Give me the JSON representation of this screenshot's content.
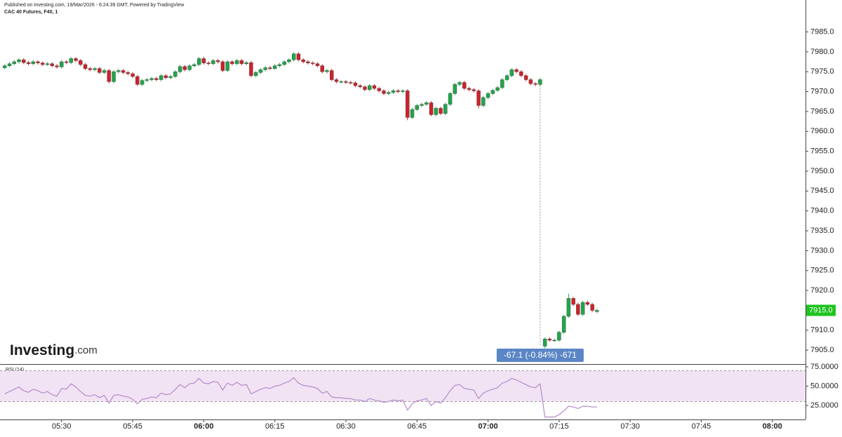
{
  "header": {
    "published": "Published on Investing.com, 19/Mar/2026 - 6:24:39 GMT, Powered by TradingView",
    "symbol": "CAC 40 Futures, F40, 1"
  },
  "watermark": [
    "Investing",
    ".com"
  ],
  "chart_data": [
    {
      "type": "candlestick",
      "up_color": "#1fa84a",
      "down_color": "#d0212b",
      "x": [
        "05:18",
        "05:19",
        "05:20",
        "05:21",
        "05:22",
        "05:23",
        "05:24",
        "05:25",
        "05:26",
        "05:27",
        "05:28",
        "05:29",
        "05:30",
        "05:31",
        "05:32",
        "05:33",
        "05:34",
        "05:35",
        "05:36",
        "05:37",
        "05:38",
        "05:39",
        "05:40",
        "05:41",
        "05:42",
        "05:43",
        "05:44",
        "05:45",
        "05:46",
        "05:47",
        "05:48",
        "05:49",
        "05:50",
        "05:51",
        "05:52",
        "05:53",
        "05:54",
        "05:55",
        "05:56",
        "05:57",
        "05:58",
        "05:59",
        "06:00",
        "06:01",
        "06:02",
        "06:03",
        "06:04",
        "06:05",
        "06:06",
        "06:07",
        "06:08",
        "06:09",
        "06:10",
        "06:11",
        "06:12",
        "06:13",
        "06:14",
        "06:15",
        "06:16",
        "06:17",
        "06:18",
        "06:19",
        "06:20",
        "06:21",
        "06:22",
        "06:23",
        "06:24",
        "06:25",
        "06:26",
        "06:27",
        "06:28",
        "06:29",
        "06:30",
        "06:31",
        "06:32",
        "06:33",
        "06:34",
        "06:35",
        "06:36",
        "06:37",
        "06:38",
        "06:39",
        "06:40",
        "06:41",
        "06:42",
        "06:43",
        "06:44",
        "06:45",
        "06:46",
        "06:47",
        "06:48",
        "06:49",
        "06:50",
        "06:51",
        "06:52",
        "06:53",
        "06:54",
        "06:55",
        "06:56",
        "06:57",
        "06:58",
        "06:59",
        "07:00",
        "07:01",
        "07:02",
        "07:03",
        "07:04",
        "07:05",
        "07:06",
        "07:07",
        "07:08",
        "07:09",
        "07:10",
        "07:11",
        "07:12",
        "07:13",
        "07:14",
        "07:15",
        "07:16",
        "07:17",
        "07:18",
        "07:19",
        "07:20",
        "07:21",
        "07:22",
        "07:23"
      ],
      "open": [
        7976.0,
        7976.5,
        7977.0,
        7977.5,
        7978.0,
        7977.3,
        7977.0,
        7977.5,
        7977.2,
        7976.8,
        7977.0,
        7976.5,
        7976.2,
        7977.5,
        7977.3,
        7978.3,
        7977.8,
        7976.8,
        7975.8,
        7975.5,
        7975.8,
        7974.8,
        7975.3,
        7972.5,
        7975.0,
        7975.3,
        7974.8,
        7974.5,
        7973.8,
        7971.8,
        7972.8,
        7973.0,
        7973.3,
        7973.0,
        7974.0,
        7973.5,
        7973.8,
        7975.0,
        7976.3,
        7975.5,
        7976.5,
        7976.8,
        7978.3,
        7977.2,
        7977.0,
        7977.8,
        7977.5,
        7975.3,
        7977.5,
        7977.0,
        7977.8,
        7977.0,
        7977.3,
        7974.0,
        7974.8,
        7975.5,
        7976.0,
        7975.8,
        7976.5,
        7976.8,
        7977.5,
        7978.0,
        7979.5,
        7978.0,
        7977.5,
        7977.2,
        7977.0,
        7976.5,
        7975.0,
        7975.3,
        7973.0,
        7972.5,
        7972.5,
        7972.3,
        7972.2,
        7971.5,
        7971.2,
        7970.5,
        7971.5,
        7970.8,
        7970.2,
        7969.5,
        7969.8,
        7970.2,
        7970.0,
        7970.2,
        7963.5,
        7965.5,
        7966.5,
        7966.8,
        7967.2,
        7964.2,
        7965.8,
        7964.5,
        7966.8,
        7969.5,
        7971.8,
        7972.3,
        7970.8,
        7970.5,
        7970.2,
        7966.5,
        7968.5,
        7969.5,
        7970.3,
        7971.0,
        7973.0,
        7974.0,
        7975.5,
        7975.0,
        7974.0,
        7973.0,
        7972.0,
        7971.8,
        7906.0,
        7907.8,
        7907.5,
        7907.5,
        7909.5,
        7913.5,
        7918.0,
        7916.5,
        7914.0,
        7917.0,
        7916.5,
        7914.7
      ],
      "high": [
        7976.9,
        7977.4,
        7977.9,
        7978.4,
        7978.4,
        7977.7,
        7977.9,
        7977.9,
        7977.6,
        7977.4,
        7977.4,
        7976.9,
        7977.9,
        7977.9,
        7978.7,
        7978.7,
        7978.2,
        7977.2,
        7976.2,
        7976.2,
        7976.2,
        7975.7,
        7975.7,
        7975.4,
        7975.7,
        7975.7,
        7975.2,
        7974.9,
        7974.2,
        7973.2,
        7973.4,
        7973.7,
        7973.7,
        7974.4,
        7974.4,
        7974.2,
        7975.4,
        7976.7,
        7976.7,
        7976.9,
        7977.2,
        7978.7,
        7978.7,
        7977.6,
        7978.2,
        7978.2,
        7977.9,
        7977.9,
        7977.9,
        7978.2,
        7978.2,
        7977.7,
        7977.7,
        7975.2,
        7975.9,
        7976.4,
        7976.4,
        7976.9,
        7977.2,
        7977.9,
        7978.4,
        7979.9,
        7979.9,
        7978.4,
        7977.9,
        7977.6,
        7977.4,
        7976.9,
        7975.7,
        7975.7,
        7973.4,
        7972.9,
        7972.9,
        7972.7,
        7972.6,
        7971.9,
        7971.6,
        7971.9,
        7971.9,
        7971.2,
        7970.6,
        7970.2,
        7970.6,
        7970.6,
        7970.6,
        7970.6,
        7965.9,
        7966.9,
        7967.2,
        7967.6,
        7967.6,
        7966.2,
        7966.2,
        7967.2,
        7969.9,
        7972.2,
        7972.7,
        7972.7,
        7971.2,
        7970.9,
        7970.6,
        7968.9,
        7969.9,
        7970.7,
        7971.4,
        7973.4,
        7974.4,
        7975.9,
        7975.9,
        7975.4,
        7974.4,
        7973.4,
        7972.4,
        7973.4,
        7908.2,
        7908.2,
        7907.9,
        7909.9,
        7913.9,
        7919.2,
        7918.4,
        7916.9,
        7917.4,
        7917.4,
        7916.9,
        7915.4
      ],
      "low": [
        7975.6,
        7976.1,
        7976.6,
        7977.1,
        7976.9,
        7976.6,
        7976.6,
        7976.8,
        7976.4,
        7976.4,
        7976.1,
        7975.8,
        7975.8,
        7976.9,
        7976.9,
        7977.4,
        7976.4,
        7975.4,
        7975.1,
        7975.1,
        7974.4,
        7974.4,
        7972.1,
        7972.1,
        7974.6,
        7974.4,
        7974.1,
        7973.4,
        7971.4,
        7971.4,
        7972.4,
        7972.6,
        7972.6,
        7972.6,
        7973.1,
        7973.1,
        7973.4,
        7974.6,
        7975.1,
        7975.1,
        7976.1,
        7976.4,
        7976.8,
        7976.6,
        7976.6,
        7977.1,
        7974.9,
        7974.9,
        7976.6,
        7976.6,
        7976.6,
        7976.6,
        7973.6,
        7973.6,
        7974.4,
        7975.1,
        7975.4,
        7975.4,
        7976.1,
        7976.4,
        7977.1,
        7977.6,
        7977.6,
        7977.1,
        7976.8,
        7976.6,
        7976.1,
        7974.6,
        7974.6,
        7972.6,
        7972.1,
        7972.1,
        7971.9,
        7971.8,
        7971.1,
        7970.8,
        7970.1,
        7970.1,
        7970.4,
        7969.8,
        7969.1,
        7969.1,
        7969.4,
        7969.6,
        7969.6,
        7962.8,
        7963.1,
        7965.1,
        7966.1,
        7966.4,
        7963.8,
        7963.8,
        7964.1,
        7964.1,
        7966.4,
        7969.1,
        7971.4,
        7970.4,
        7970.1,
        7969.8,
        7965.8,
        7966.1,
        7968.1,
        7969.1,
        7969.9,
        7970.6,
        7972.6,
        7973.6,
        7974.6,
        7973.6,
        7972.6,
        7971.6,
        7971.4,
        7971.4,
        7905.5,
        7907.1,
        7907.1,
        7907.1,
        7909.1,
        7913.1,
        7916.1,
        7913.6,
        7913.6,
        7916.1,
        7914.6,
        7914.3
      ],
      "close": [
        7976.5,
        7977.0,
        7977.5,
        7978.0,
        7977.3,
        7977.0,
        7977.5,
        7977.2,
        7976.8,
        7977.0,
        7976.5,
        7976.2,
        7977.5,
        7977.3,
        7978.3,
        7977.8,
        7976.8,
        7975.8,
        7975.5,
        7975.8,
        7974.8,
        7975.3,
        7972.5,
        7975.0,
        7975.3,
        7974.8,
        7974.5,
        7973.8,
        7971.8,
        7972.8,
        7973.0,
        7973.3,
        7973.0,
        7974.0,
        7973.5,
        7973.8,
        7975.0,
        7976.3,
        7975.5,
        7976.5,
        7976.8,
        7978.3,
        7977.2,
        7977.0,
        7977.8,
        7977.5,
        7975.3,
        7977.5,
        7977.0,
        7977.8,
        7977.0,
        7977.3,
        7974.0,
        7974.8,
        7975.5,
        7976.0,
        7975.8,
        7976.5,
        7976.8,
        7977.5,
        7978.0,
        7979.5,
        7978.0,
        7977.5,
        7977.2,
        7977.0,
        7976.5,
        7975.0,
        7975.3,
        7973.0,
        7972.5,
        7972.5,
        7972.3,
        7972.2,
        7971.5,
        7971.2,
        7970.5,
        7971.5,
        7970.8,
        7970.2,
        7969.5,
        7969.8,
        7970.2,
        7970.0,
        7970.2,
        7963.5,
        7965.5,
        7966.5,
        7966.8,
        7967.2,
        7964.2,
        7965.8,
        7964.5,
        7966.8,
        7969.5,
        7971.8,
        7972.3,
        7970.8,
        7970.5,
        7970.2,
        7966.5,
        7968.5,
        7969.5,
        7970.3,
        7971.0,
        7973.0,
        7974.0,
        7975.5,
        7975.0,
        7974.0,
        7973.0,
        7972.0,
        7971.8,
        7973.0,
        7907.8,
        7907.5,
        7907.5,
        7909.5,
        7913.5,
        7918.0,
        7916.5,
        7914.0,
        7917.0,
        7916.5,
        7915.0,
        7915.0
      ],
      "xlim": [
        "05:17",
        "08:07"
      ],
      "xticks": [
        "05:30",
        "05:45",
        "06:00",
        "06:15",
        "06:30",
        "06:45",
        "07:00",
        "07:15",
        "07:30",
        "07:45",
        "08:00"
      ],
      "ylim": [
        7901.5,
        7989.5
      ],
      "yticks": [
        {
          "value": 7905,
          "label": "7905.0"
        },
        {
          "value": 7910,
          "label": "7910.0"
        },
        {
          "value": 7915,
          "label": "7915.0"
        },
        {
          "value": 7920,
          "label": "7920.0"
        },
        {
          "value": 7925,
          "label": "7925.0"
        },
        {
          "value": 7930,
          "label": "7930.0"
        },
        {
          "value": 7935,
          "label": "7935.0"
        },
        {
          "value": 7940,
          "label": "7940.0"
        },
        {
          "value": 7945,
          "label": "7945.0"
        },
        {
          "value": 7950,
          "label": "7950.0"
        },
        {
          "value": 7955,
          "label": "7955.0"
        },
        {
          "value": 7960,
          "label": "7960.0"
        },
        {
          "value": 7965,
          "label": "7965.0"
        },
        {
          "value": 7970,
          "label": "7970.0"
        },
        {
          "value": 7975,
          "label": "7975.0"
        },
        {
          "value": 7980,
          "label": "7980.0"
        },
        {
          "value": 7985,
          "label": "7985.0"
        }
      ],
      "price_marker": {
        "value": 7915.0,
        "label": "7915.0",
        "color": "#1ec31e"
      },
      "measure": {
        "x": "07:11",
        "from": 7973.0,
        "to": 7905.9,
        "label": "-67.1 (-0.84%) -671",
        "color": "#5b86c5"
      }
    },
    {
      "type": "line",
      "title": "RSI (14)",
      "color": "#b58ac9",
      "band_color": "#f1e3f4",
      "bands": [
        30,
        70
      ],
      "values": [
        40,
        43,
        46,
        49,
        44,
        42,
        46,
        44,
        41,
        43,
        39,
        37,
        47,
        46,
        53,
        49,
        43,
        38,
        37,
        39,
        35,
        38,
        28,
        38,
        39,
        37,
        36,
        33,
        27,
        33,
        34,
        36,
        35,
        41,
        39,
        40,
        46,
        52,
        48,
        53,
        54,
        60,
        54,
        53,
        56,
        55,
        45,
        54,
        51,
        55,
        51,
        52,
        40,
        43,
        46,
        48,
        47,
        50,
        51,
        54,
        56,
        61,
        54,
        51,
        50,
        49,
        47,
        41,
        43,
        36,
        35,
        35,
        34,
        34,
        32,
        32,
        30,
        34,
        32,
        31,
        29,
        30,
        32,
        31,
        32,
        19,
        27,
        31,
        32,
        34,
        25,
        30,
        28,
        35,
        44,
        51,
        52,
        47,
        46,
        45,
        34,
        41,
        44,
        46,
        48,
        54,
        56,
        60,
        58,
        55,
        52,
        49,
        48,
        53,
        10,
        10,
        10,
        13,
        18,
        24,
        23,
        21,
        24,
        24,
        23,
        23
      ],
      "ylim": [
        6.8,
        77.7
      ],
      "yticks": [
        {
          "value": 75,
          "label": "75.0000"
        },
        {
          "value": 50,
          "label": "50.0000"
        },
        {
          "value": 25,
          "label": "25.0000"
        }
      ]
    }
  ]
}
